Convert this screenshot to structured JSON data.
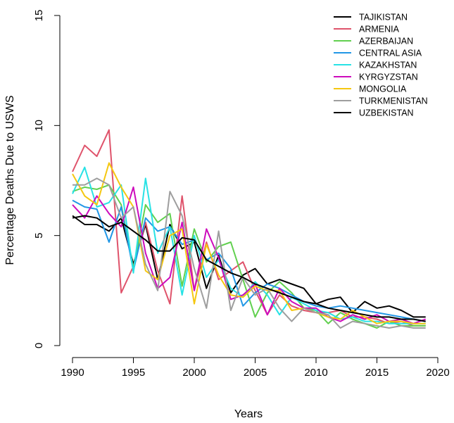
{
  "chart_data": {
    "type": "line",
    "title": "",
    "xlabel": "Years",
    "ylabel": "Percentage Deaths Due to USWS",
    "xlim": [
      1990,
      2020
    ],
    "ylim": [
      0,
      15
    ],
    "xticks": [
      1990,
      1995,
      2000,
      2005,
      2010,
      2015,
      2020
    ],
    "yticks": [
      0,
      5,
      10,
      15
    ],
    "legend_position": "top-right",
    "x": [
      1990,
      1991,
      1992,
      1993,
      1994,
      1995,
      1996,
      1997,
      1998,
      1999,
      2000,
      2001,
      2002,
      2003,
      2004,
      2005,
      2006,
      2007,
      2008,
      2009,
      2010,
      2011,
      2012,
      2013,
      2014,
      2015,
      2016,
      2017,
      2018,
      2019
    ],
    "series": [
      {
        "name": "TAJIKISTAN",
        "color": "#000000",
        "values": [
          5.9,
          5.5,
          5.5,
          5.2,
          5.8,
          3.7,
          5.5,
          3.0,
          5.5,
          4.4,
          4.7,
          2.6,
          4.1,
          2.4,
          3.2,
          3.5,
          2.8,
          3.0,
          2.8,
          2.6,
          1.9,
          2.1,
          2.2,
          1.5,
          2.0,
          1.7,
          1.8,
          1.6,
          1.3,
          1.3
        ]
      },
      {
        "name": "ARMENIA",
        "color": "#DF536B",
        "values": [
          7.9,
          9.1,
          8.6,
          9.8,
          2.4,
          3.6,
          5.6,
          3.4,
          1.9,
          6.8,
          2.5,
          4.7,
          3.0,
          3.4,
          3.8,
          2.5,
          1.4,
          2.3,
          1.8,
          1.6,
          1.5,
          1.5,
          1.6,
          1.3,
          1.3,
          1.2,
          1.0,
          1.1,
          0.9,
          0.9
        ]
      },
      {
        "name": "AZERBAIJAN",
        "color": "#61D04F",
        "values": [
          7.0,
          7.2,
          7.1,
          7.3,
          6.4,
          3.5,
          6.4,
          5.6,
          6.0,
          2.7,
          5.3,
          3.8,
          4.5,
          4.7,
          3.0,
          1.3,
          2.4,
          2.9,
          2.4,
          1.7,
          1.6,
          1.0,
          1.5,
          1.2,
          1.0,
          0.8,
          1.1,
          0.9,
          0.9,
          0.9
        ]
      },
      {
        "name": "CENTRAL ASIA",
        "color": "#2297E6",
        "values": [
          6.6,
          6.3,
          6.2,
          4.7,
          6.3,
          3.4,
          5.8,
          5.2,
          5.4,
          4.6,
          4.8,
          3.9,
          4.2,
          3.5,
          1.8,
          2.4,
          2.8,
          2.6,
          2.3,
          2.0,
          1.8,
          1.7,
          1.8,
          1.7,
          1.6,
          1.5,
          1.4,
          1.3,
          1.2,
          1.1
        ]
      },
      {
        "name": "KAZAKHSTAN",
        "color": "#28E2E5",
        "values": [
          6.9,
          8.1,
          6.3,
          6.5,
          7.3,
          3.3,
          7.6,
          4.2,
          5.4,
          2.3,
          5.0,
          3.1,
          3.9,
          2.6,
          2.2,
          2.9,
          2.3,
          1.4,
          2.2,
          1.9,
          1.6,
          1.5,
          1.2,
          1.3,
          1.1,
          1.1,
          1.0,
          1.0,
          1.0,
          1.0
        ]
      },
      {
        "name": "KYRGYZSTAN",
        "color": "#CD0BBC",
        "values": [
          6.4,
          5.8,
          6.8,
          6.0,
          5.4,
          7.2,
          4.2,
          2.6,
          3.1,
          5.6,
          2.5,
          5.3,
          4.0,
          2.1,
          2.3,
          2.8,
          1.4,
          2.6,
          2.0,
          1.7,
          1.7,
          1.3,
          1.1,
          1.4,
          1.2,
          1.4,
          1.1,
          1.2,
          1.0,
          1.2
        ]
      },
      {
        "name": "MONGOLIA",
        "color": "#F5C710",
        "values": [
          7.8,
          6.8,
          6.4,
          8.3,
          7.2,
          6.3,
          3.4,
          3.0,
          5.0,
          5.3,
          1.9,
          4.6,
          3.2,
          2.3,
          2.2,
          2.7,
          2.5,
          2.5,
          1.6,
          1.7,
          1.5,
          1.3,
          1.2,
          1.6,
          1.3,
          1.0,
          1.1,
          1.1,
          1.0,
          1.0
        ]
      },
      {
        "name": "TURKMENISTAN",
        "color": "#9E9E9E",
        "values": [
          7.3,
          7.3,
          7.6,
          7.3,
          5.8,
          6.3,
          3.7,
          2.5,
          7.0,
          5.9,
          3.5,
          1.7,
          5.2,
          1.6,
          3.1,
          2.3,
          2.6,
          1.7,
          1.1,
          1.7,
          1.5,
          1.4,
          0.8,
          1.1,
          1.0,
          0.9,
          0.8,
          0.9,
          0.8,
          0.8
        ]
      },
      {
        "name": "UZBEKISTAN",
        "color": "#000000",
        "values": [
          5.8,
          5.9,
          5.8,
          5.4,
          5.6,
          5.2,
          4.8,
          4.3,
          4.3,
          4.9,
          4.8,
          3.9,
          3.6,
          3.3,
          3.1,
          2.8,
          2.6,
          2.4,
          2.2,
          2.0,
          1.9,
          1.7,
          1.6,
          1.5,
          1.4,
          1.3,
          1.3,
          1.2,
          1.2,
          1.1
        ]
      }
    ]
  }
}
